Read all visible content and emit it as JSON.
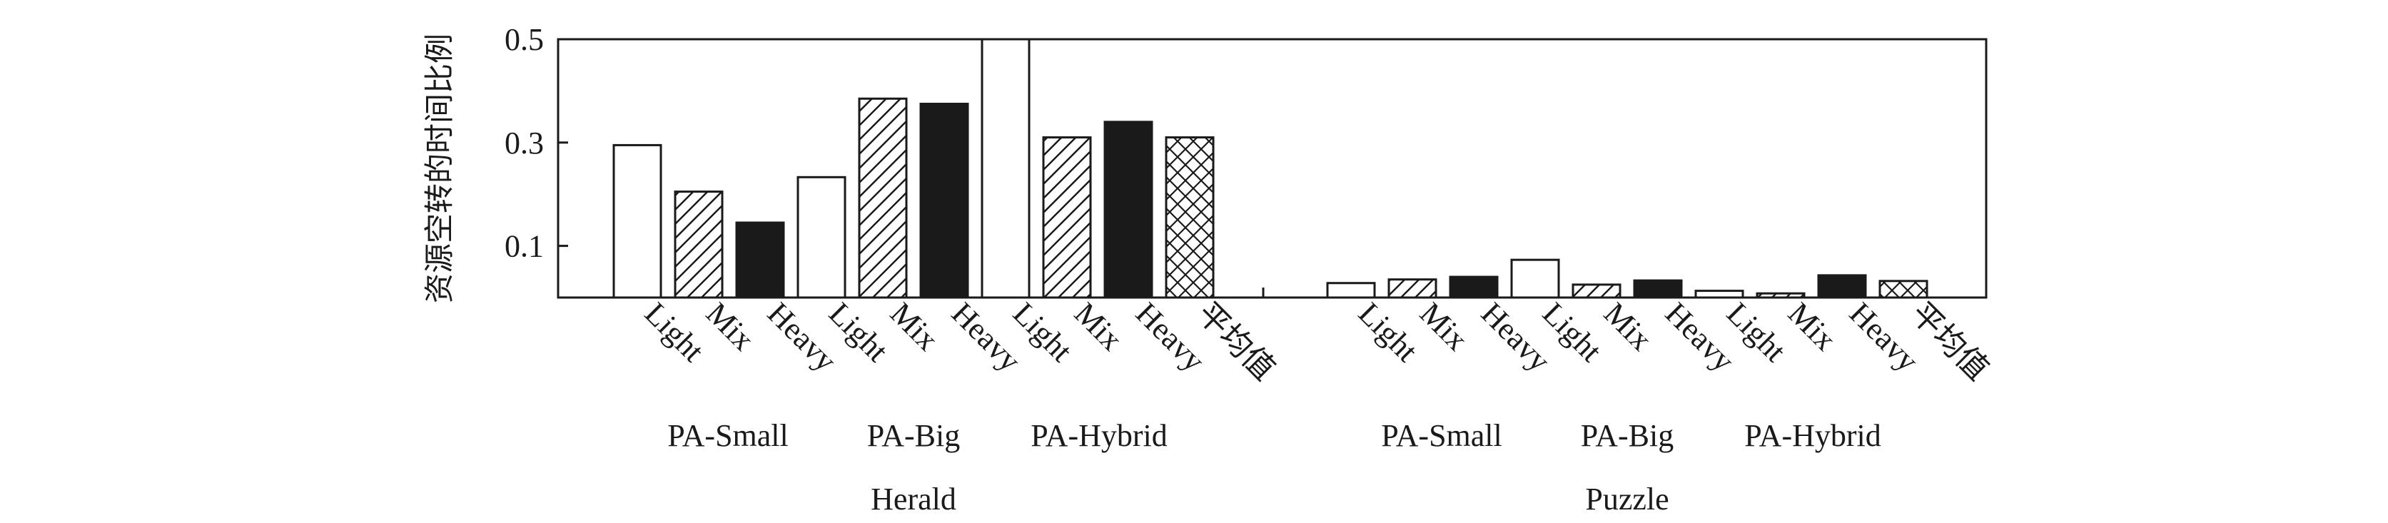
{
  "chart_data": {
    "type": "bar",
    "ylabel": "资源空转的时间比例",
    "ylim": [
      0,
      0.5
    ],
    "yticks": [
      "0.1",
      "0.3",
      "0.5"
    ],
    "categories": [
      "Light",
      "Mix",
      "Heavy",
      "Light",
      "Mix",
      "Heavy",
      "Light",
      "Mix",
      "Heavy",
      "平均值"
    ],
    "pattern_order": [
      "empty",
      "diagonal",
      "solid",
      "empty",
      "diagonal",
      "solid",
      "empty",
      "diagonal",
      "solid",
      "crosshatch"
    ],
    "sections": [
      {
        "name": "Herald",
        "groups": [
          "PA-Small",
          "PA-Big",
          "PA-Hybrid"
        ],
        "values": [
          0.295,
          0.205,
          0.145,
          0.233,
          0.385,
          0.375,
          0.5,
          0.31,
          0.34,
          0.31
        ]
      },
      {
        "name": "Puzzle",
        "groups": [
          "PA-Small",
          "PA-Big",
          "PA-Hybrid"
        ],
        "values": [
          0.028,
          0.035,
          0.04,
          0.073,
          0.025,
          0.033,
          0.013,
          0.008,
          0.043,
          0.032
        ]
      }
    ]
  }
}
